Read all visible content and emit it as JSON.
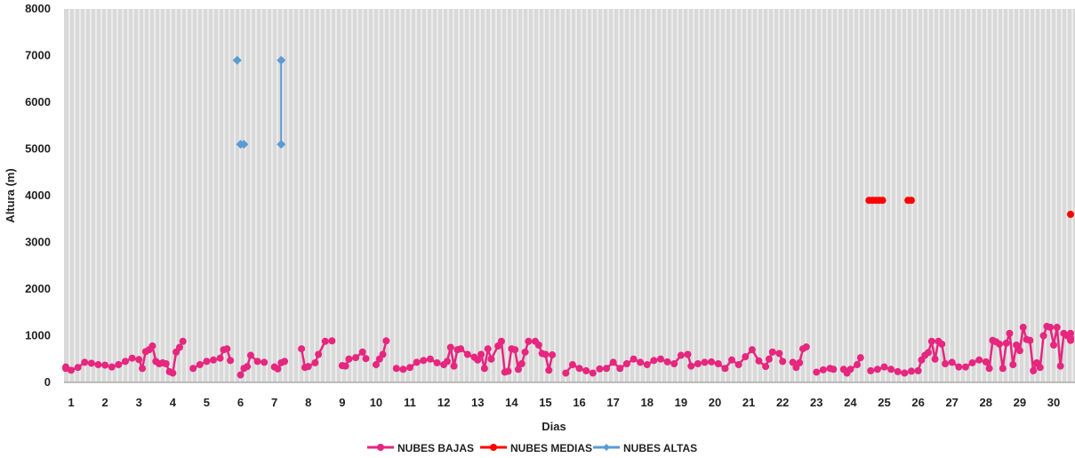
{
  "chart_data": {
    "type": "line",
    "xlabel": "Dias",
    "ylabel": "Altura (m)",
    "xlim": [
      0.6,
      30.5
    ],
    "ylim": [
      0,
      8000
    ],
    "y_ticks": [
      0,
      1000,
      2000,
      3000,
      4000,
      5000,
      6000,
      7000,
      8000
    ],
    "x_ticks": [
      "1",
      "2",
      "3",
      "4",
      "5",
      "6",
      "7",
      "8",
      "9",
      "10",
      "11",
      "12",
      "13",
      "14",
      "15",
      "16",
      "17",
      "18",
      "19",
      "20",
      "21",
      "22",
      "23",
      "24",
      "25",
      "26",
      "27",
      "28",
      "29",
      "30"
    ],
    "grid": "vertical",
    "plot_background": "#d9d9d9",
    "legend_position": "bottom",
    "series": [
      {
        "name": "NUBES BAJAS",
        "color": "#e6267f",
        "marker": "circle",
        "segments": [
          [
            [
              0.6,
              300
            ],
            [
              0.8,
              330
            ],
            [
              1.0,
              260
            ],
            [
              1.2,
              320
            ],
            [
              1.4,
              430
            ],
            [
              1.6,
              410
            ],
            [
              1.8,
              380
            ],
            [
              2.0,
              370
            ],
            [
              2.2,
              330
            ],
            [
              2.4,
              380
            ],
            [
              2.6,
              450
            ],
            [
              2.8,
              520
            ],
            [
              3.0,
              490
            ],
            [
              3.1,
              300
            ],
            [
              3.2,
              660
            ],
            [
              3.3,
              700
            ],
            [
              3.4,
              780
            ],
            [
              3.5,
              450
            ],
            [
              3.6,
              400
            ],
            [
              3.7,
              420
            ],
            [
              3.8,
              400
            ],
            [
              3.9,
              230
            ],
            [
              4.0,
              200
            ],
            [
              4.1,
              650
            ],
            [
              4.2,
              750
            ],
            [
              4.3,
              880
            ]
          ],
          [
            [
              4.6,
              300
            ],
            [
              4.8,
              380
            ],
            [
              5.0,
              450
            ],
            [
              5.2,
              480
            ],
            [
              5.4,
              520
            ],
            [
              5.5,
              700
            ],
            [
              5.6,
              720
            ],
            [
              5.7,
              470
            ]
          ],
          [
            [
              6.0,
              160
            ],
            [
              6.1,
              300
            ],
            [
              6.2,
              340
            ],
            [
              6.3,
              580
            ],
            [
              6.5,
              450
            ],
            [
              6.7,
              430
            ]
          ],
          [
            [
              7.0,
              330
            ],
            [
              7.1,
              290
            ],
            [
              7.2,
              420
            ],
            [
              7.3,
              450
            ]
          ],
          [
            [
              7.8,
              720
            ],
            [
              7.9,
              320
            ],
            [
              8.0,
              340
            ],
            [
              8.2,
              420
            ],
            [
              8.3,
              600
            ],
            [
              8.5,
              880
            ],
            [
              8.7,
              890
            ]
          ],
          [
            [
              9.0,
              360
            ],
            [
              9.1,
              350
            ],
            [
              9.2,
              500
            ],
            [
              9.4,
              530
            ],
            [
              9.6,
              650
            ],
            [
              9.7,
              510
            ]
          ],
          [
            [
              10.0,
              380
            ],
            [
              10.1,
              500
            ],
            [
              10.2,
              600
            ],
            [
              10.3,
              890
            ]
          ],
          [
            [
              10.6,
              300
            ],
            [
              10.8,
              280
            ],
            [
              11.0,
              320
            ],
            [
              11.2,
              430
            ],
            [
              11.4,
              470
            ],
            [
              11.6,
              500
            ],
            [
              11.8,
              420
            ],
            [
              12.0,
              380
            ],
            [
              12.1,
              450
            ],
            [
              12.2,
              750
            ],
            [
              12.3,
              350
            ],
            [
              12.4,
              700
            ],
            [
              12.5,
              720
            ],
            [
              12.7,
              600
            ],
            [
              12.9,
              540
            ],
            [
              13.0,
              480
            ],
            [
              13.1,
              600
            ],
            [
              13.2,
              300
            ],
            [
              13.3,
              720
            ],
            [
              13.4,
              500
            ],
            [
              13.6,
              780
            ],
            [
              13.7,
              880
            ],
            [
              13.8,
              220
            ],
            [
              13.9,
              240
            ],
            [
              14.0,
              720
            ],
            [
              14.1,
              700
            ],
            [
              14.2,
              280
            ],
            [
              14.3,
              400
            ],
            [
              14.4,
              650
            ],
            [
              14.5,
              880
            ],
            [
              14.7,
              880
            ],
            [
              14.8,
              800
            ],
            [
              14.9,
              620
            ],
            [
              15.0,
              600
            ],
            [
              15.1,
              260
            ],
            [
              15.2,
              590
            ]
          ],
          [
            [
              15.6,
              200
            ],
            [
              15.8,
              380
            ],
            [
              16.0,
              300
            ],
            [
              16.2,
              250
            ],
            [
              16.4,
              200
            ]
          ],
          [
            [
              16.6,
              290
            ],
            [
              16.8,
              300
            ],
            [
              17.0,
              430
            ],
            [
              17.2,
              300
            ],
            [
              17.4,
              400
            ],
            [
              17.6,
              500
            ],
            [
              17.8,
              430
            ],
            [
              18.0,
              380
            ],
            [
              18.2,
              470
            ],
            [
              18.4,
              500
            ],
            [
              18.6,
              440
            ],
            [
              18.8,
              400
            ],
            [
              19.0,
              580
            ],
            [
              19.2,
              600
            ],
            [
              19.3,
              350
            ],
            [
              19.5,
              400
            ],
            [
              19.7,
              430
            ],
            [
              19.9,
              440
            ],
            [
              20.1,
              400
            ],
            [
              20.3,
              300
            ],
            [
              20.5,
              480
            ],
            [
              20.7,
              380
            ],
            [
              20.9,
              550
            ],
            [
              21.1,
              700
            ],
            [
              21.3,
              460
            ],
            [
              21.5,
              340
            ],
            [
              21.6,
              500
            ],
            [
              21.7,
              650
            ],
            [
              21.9,
              620
            ],
            [
              22.0,
              450
            ]
          ],
          [
            [
              22.3,
              430
            ],
            [
              22.4,
              320
            ],
            [
              22.5,
              420
            ],
            [
              22.6,
              720
            ],
            [
              22.7,
              760
            ]
          ],
          [
            [
              23.0,
              220
            ],
            [
              23.2,
              270
            ],
            [
              23.4,
              300
            ],
            [
              23.5,
              280
            ]
          ],
          [
            [
              23.8,
              280
            ],
            [
              23.9,
              200
            ],
            [
              24.0,
              280
            ],
            [
              24.2,
              380
            ],
            [
              24.3,
              530
            ]
          ],
          [
            [
              24.6,
              250
            ],
            [
              24.8,
              280
            ],
            [
              25.0,
              330
            ],
            [
              25.2,
              280
            ],
            [
              25.4,
              230
            ],
            [
              25.6,
              200
            ],
            [
              25.8,
              240
            ],
            [
              26.0,
              250
            ],
            [
              26.1,
              480
            ],
            [
              26.2,
              580
            ],
            [
              26.3,
              640
            ],
            [
              26.4,
              880
            ],
            [
              26.5,
              500
            ],
            [
              26.6,
              880
            ],
            [
              26.7,
              820
            ],
            [
              26.8,
              400
            ],
            [
              27.0,
              430
            ],
            [
              27.2,
              330
            ],
            [
              27.4,
              330
            ],
            [
              27.6,
              420
            ],
            [
              27.8,
              480
            ],
            [
              28.0,
              440
            ],
            [
              28.1,
              300
            ],
            [
              28.2,
              900
            ],
            [
              28.3,
              870
            ],
            [
              28.4,
              820
            ],
            [
              28.5,
              300
            ],
            [
              28.6,
              840
            ],
            [
              28.7,
              1050
            ],
            [
              28.8,
              380
            ],
            [
              28.9,
              800
            ],
            [
              29.0,
              680
            ],
            [
              29.1,
              1180
            ],
            [
              29.2,
              920
            ],
            [
              29.3,
              900
            ],
            [
              29.4,
              250
            ],
            [
              29.5,
              420
            ],
            [
              29.6,
              320
            ],
            [
              29.7,
              1000
            ],
            [
              29.8,
              1200
            ],
            [
              29.9,
              1180
            ],
            [
              30.0,
              800
            ],
            [
              30.1,
              1180
            ],
            [
              30.2,
              350
            ],
            [
              30.3,
              1050
            ],
            [
              30.4,
              1000
            ],
            [
              30.5,
              950
            ],
            [
              30.6,
              920
            ],
            [
              30.7,
              900
            ],
            [
              30.8,
              1050
            ]
          ]
        ]
      },
      {
        "name": "NUBES MEDIAS",
        "color": "#ff0000",
        "marker": "circle",
        "segments": [
          [
            [
              24.55,
              3900
            ],
            [
              24.65,
              3900
            ],
            [
              24.75,
              3900
            ],
            [
              24.85,
              3900
            ],
            [
              24.95,
              3900
            ]
          ],
          [
            [
              25.7,
              3900
            ],
            [
              25.8,
              3900
            ]
          ],
          [
            [
              31.5,
              3600
            ]
          ]
        ]
      },
      {
        "name": "NUBES ALTAS",
        "color": "#5b9bd5",
        "marker": "diamond",
        "segments": [
          [
            [
              5.9,
              6900
            ]
          ],
          [
            [
              6.0,
              5100
            ],
            [
              6.1,
              5100
            ]
          ],
          [
            [
              7.2,
              6900
            ],
            [
              7.2,
              5100
            ]
          ]
        ]
      }
    ]
  }
}
